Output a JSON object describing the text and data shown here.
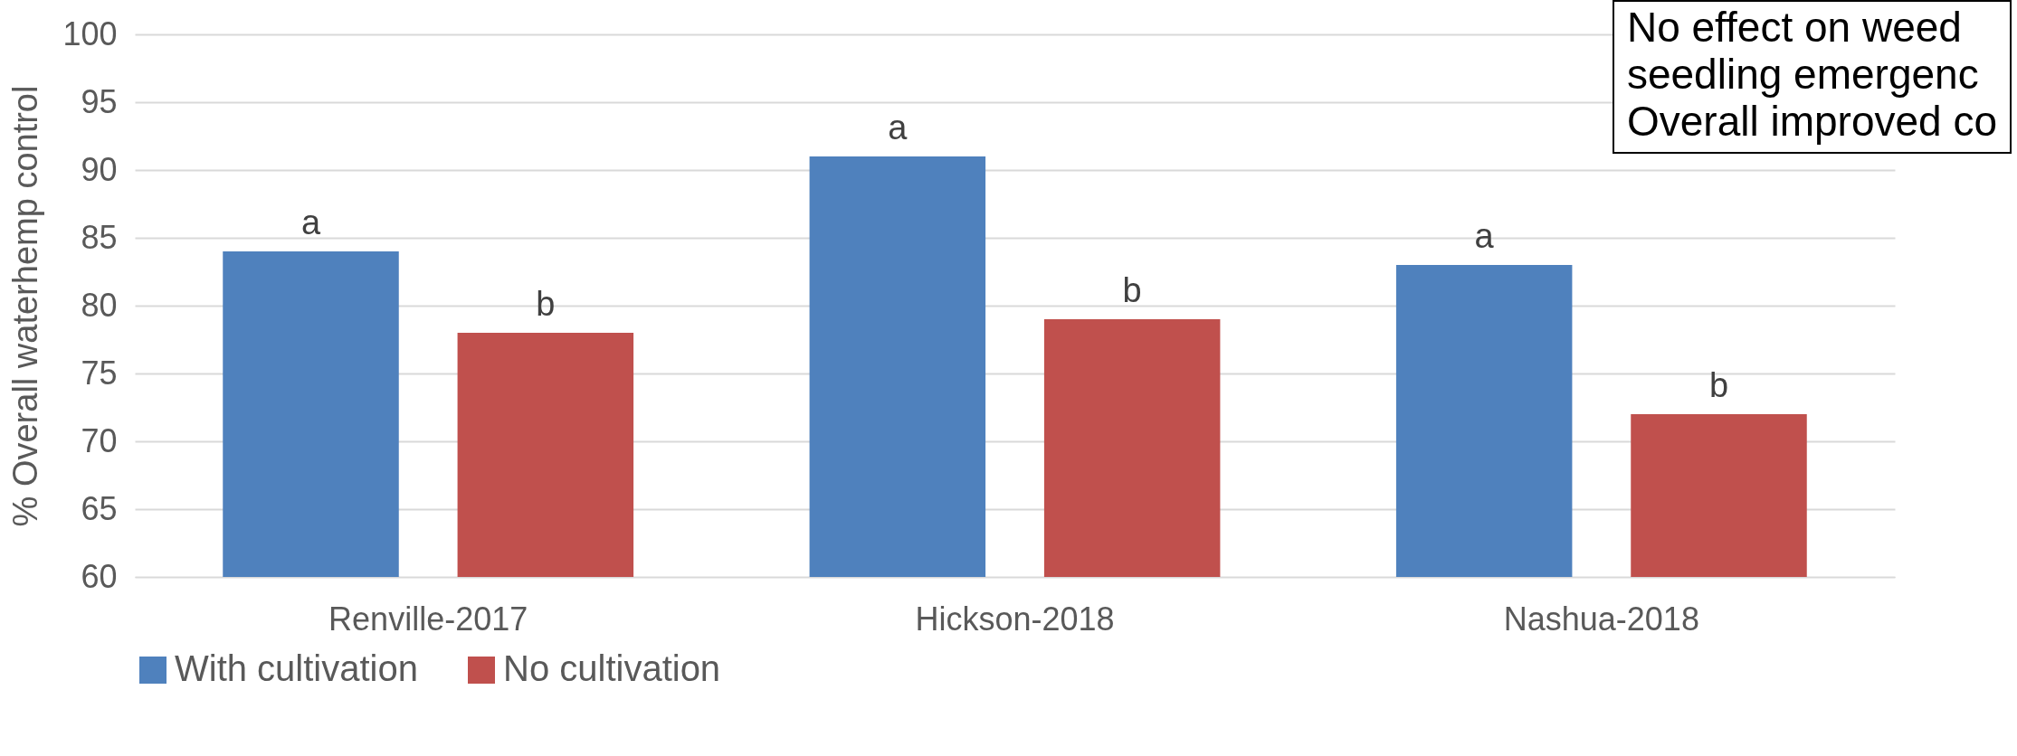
{
  "chart_data": {
    "type": "bar",
    "ylabel": "% Overall waterhemp control",
    "categories": [
      "Renville-2017",
      "Hickson-2018",
      "Nashua-2018"
    ],
    "series": [
      {
        "name": "With cultivation",
        "color": "#4f81bd",
        "values": [
          84,
          91,
          83
        ],
        "value_labels": [
          "a",
          "a",
          "a"
        ]
      },
      {
        "name": "No cultivation",
        "color": "#c0504d",
        "values": [
          78,
          79,
          72
        ],
        "value_labels": [
          "b",
          "b",
          "b"
        ]
      }
    ],
    "ylim": [
      60,
      100
    ],
    "yticks": [
      60,
      65,
      70,
      75,
      80,
      85,
      90,
      95,
      100
    ],
    "grid": "y",
    "legend": "bottom",
    "annotations": [
      "No effect on weed",
      "seedling emergenc",
      "Overall improved co"
    ]
  }
}
